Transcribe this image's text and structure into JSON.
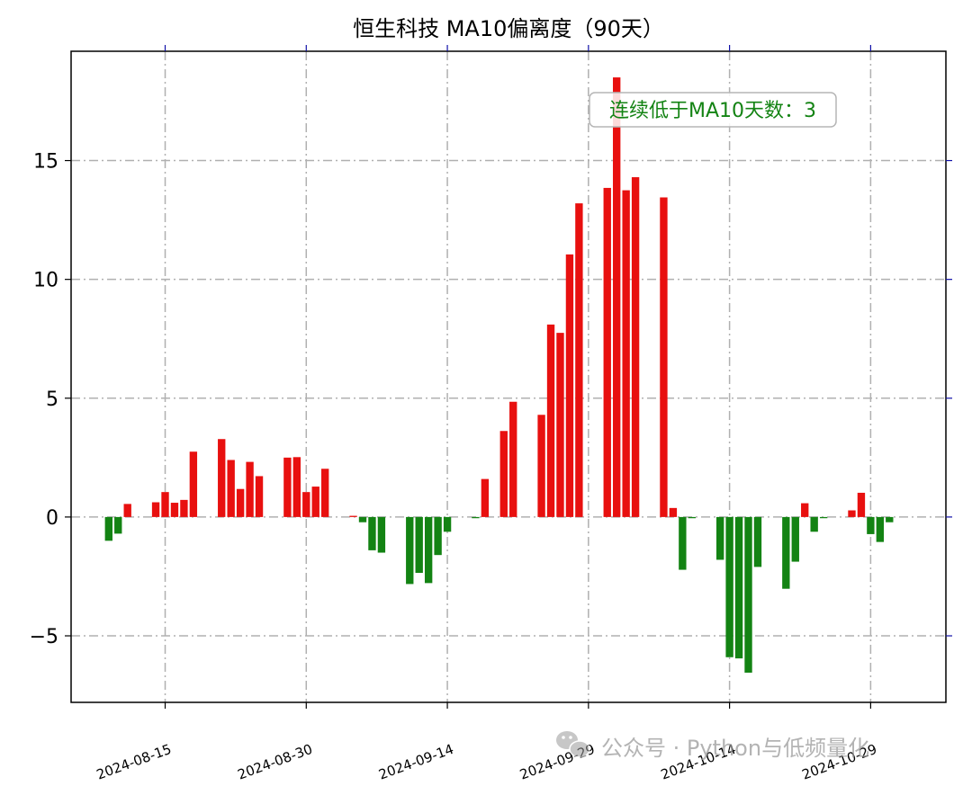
{
  "chart_data": {
    "type": "bar",
    "title": "恒生科技 MA10偏离度（90天）",
    "xlabel": "",
    "ylabel": "",
    "ylim": [
      -7.8,
      19.6
    ],
    "yticks": [
      -5,
      0,
      5,
      10,
      15
    ],
    "ytick_labels": [
      "−5",
      "0",
      "5",
      "10",
      "15"
    ],
    "xlim": [
      "2024-08-05",
      "2024-11-06"
    ],
    "xticks": [
      "2024-08-15",
      "2024-08-30",
      "2024-09-14",
      "2024-09-29",
      "2024-10-14",
      "2024-10-29"
    ],
    "grid": true,
    "positive_color": "#e8100f",
    "negative_color": "#138313",
    "annotation": {
      "text": "连续低于MA10天数：3",
      "color": "#138313"
    },
    "series": [
      {
        "dates": [
          "2024-08-09",
          "2024-08-10",
          "2024-08-11",
          "2024-08-12",
          "2024-08-13",
          "2024-08-14",
          "2024-08-15",
          "2024-08-16",
          "2024-08-17",
          "2024-08-18",
          "2024-08-19",
          "2024-08-20",
          "2024-08-21",
          "2024-08-22",
          "2024-08-23",
          "2024-08-24",
          "2024-08-25",
          "2024-08-26",
          "2024-08-27",
          "2024-08-28",
          "2024-08-29",
          "2024-08-30",
          "2024-08-31",
          "2024-09-01",
          "2024-09-02",
          "2024-09-03",
          "2024-09-04",
          "2024-09-05",
          "2024-09-06",
          "2024-09-07",
          "2024-09-08",
          "2024-09-09",
          "2024-09-10",
          "2024-09-11",
          "2024-09-12",
          "2024-09-13",
          "2024-09-14",
          "2024-09-15",
          "2024-09-16",
          "2024-09-17",
          "2024-09-18",
          "2024-09-19",
          "2024-09-20",
          "2024-09-21",
          "2024-09-22",
          "2024-09-23",
          "2024-09-24",
          "2024-09-25",
          "2024-09-26",
          "2024-09-27",
          "2024-09-28",
          "2024-09-29",
          "2024-09-30",
          "2024-10-01",
          "2024-10-02",
          "2024-10-03",
          "2024-10-04",
          "2024-10-05",
          "2024-10-06",
          "2024-10-07",
          "2024-10-08",
          "2024-10-09",
          "2024-10-10",
          "2024-10-11",
          "2024-10-12",
          "2024-10-13",
          "2024-10-14",
          "2024-10-15",
          "2024-10-16",
          "2024-10-17",
          "2024-10-18",
          "2024-10-19",
          "2024-10-20",
          "2024-10-21",
          "2024-10-22",
          "2024-10-23",
          "2024-10-24",
          "2024-10-25",
          "2024-10-26",
          "2024-10-27",
          "2024-10-28",
          "2024-10-29",
          "2024-10-30",
          "2024-10-31",
          "2024-11-01",
          "2024-11-02",
          "2024-11-03"
        ],
        "values": [
          -1.0,
          -0.7,
          0.55,
          0,
          0,
          0.62,
          1.05,
          0.6,
          0.72,
          2.75,
          0,
          0,
          3.28,
          2.4,
          1.18,
          2.32,
          1.72,
          0,
          0,
          2.5,
          2.52,
          1.05,
          1.28,
          2.03,
          0,
          0,
          0.05,
          -0.22,
          -1.4,
          -1.5,
          0,
          0,
          -2.82,
          -2.35,
          -2.78,
          -1.6,
          -0.62,
          0,
          0,
          -0.05,
          1.6,
          0,
          3.62,
          4.85,
          0,
          0,
          4.3,
          8.1,
          7.75,
          11.05,
          13.2,
          0,
          0,
          13.85,
          18.5,
          13.75,
          14.3,
          0,
          0,
          13.45,
          0.38,
          -2.22,
          -0.05,
          0,
          0,
          -1.8,
          -5.9,
          -5.95,
          -6.55,
          -2.1,
          0,
          0,
          -3.02,
          -1.88,
          0.58,
          -0.62,
          -0.05,
          0,
          0,
          0.28,
          1.02,
          -0.72,
          -1.05,
          -0.22,
          0,
          0,
          0
        ]
      }
    ]
  },
  "watermark": {
    "icon": "wechat-icon",
    "text": "公众号 · Python与低频量化"
  }
}
